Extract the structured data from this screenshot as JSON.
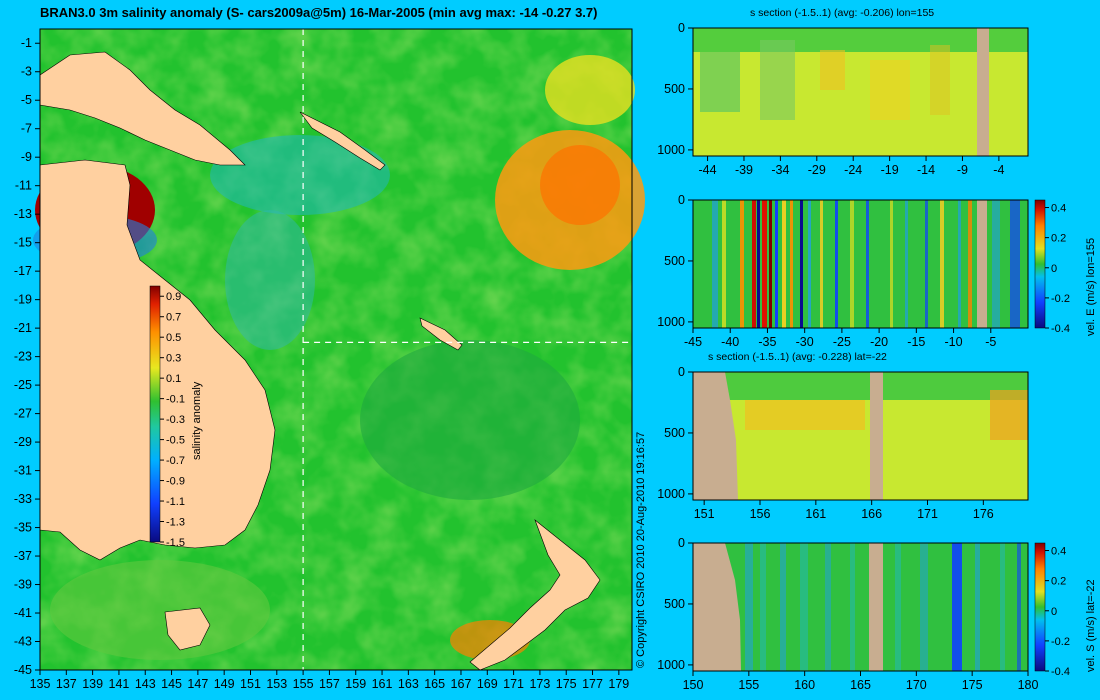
{
  "main_title": "BRAN3.0 3m salinity anomaly (S- cars2009a@5m) 16-Mar-2005 (min avg max: -14 -0.27 3.7)",
  "copyright": "© Copyright CSIRO 2010   20-Aug-2010 19:16:57",
  "colors": {
    "background": "#00ccff",
    "land": "#ffd0a0",
    "section_land": "#c8ad90",
    "ocean_base": "#22c22e"
  },
  "chart_data": [
    {
      "type": "heatmap",
      "id": "map",
      "title": "BRAN3.0 3m salinity anomaly (S- cars2009a@5m) 16-Mar-2005 (min avg max: -14 -0.27 3.7)",
      "xlabel": "",
      "ylabel": "",
      "xlim": [
        135,
        180
      ],
      "ylim": [
        -45,
        0
      ],
      "x_ticks": [
        135,
        137,
        139,
        141,
        143,
        145,
        147,
        149,
        151,
        153,
        155,
        157,
        159,
        161,
        163,
        165,
        167,
        169,
        171,
        173,
        175,
        177,
        179
      ],
      "y_ticks": [
        -1,
        -3,
        -5,
        -7,
        -9,
        -11,
        -13,
        -15,
        -17,
        -19,
        -21,
        -23,
        -25,
        -27,
        -29,
        -31,
        -33,
        -35,
        -37,
        -39,
        -41,
        -43,
        -45
      ],
      "crosshair": {
        "lon": 155,
        "lat": -22
      },
      "colorbar": {
        "label": "salinity anomaly",
        "range": [
          -1.5,
          1.0
        ],
        "ticks": [
          0.9,
          0.7,
          0.5,
          0.3,
          0.1,
          -0.1,
          -0.3,
          -0.5,
          -0.7,
          -0.9,
          -1.1,
          -1.3,
          -1.5
        ]
      }
    },
    {
      "type": "heatmap",
      "id": "s1",
      "title": "s section (-1.5..1) (avg: -0.206) lon=155",
      "xlim": [
        -46,
        0
      ],
      "ylim": [
        1050,
        0
      ],
      "x_ticks": [
        -44,
        -39,
        -34,
        -29,
        -24,
        -19,
        -14,
        -9,
        -4
      ],
      "y_ticks": [
        0,
        500,
        1000
      ],
      "colorbar": null
    },
    {
      "type": "heatmap",
      "id": "s2",
      "title": "",
      "xlim": [
        -45,
        0
      ],
      "ylim": [
        1050,
        0
      ],
      "x_ticks": [
        -45,
        -40,
        -35,
        -30,
        -25,
        -20,
        -15,
        -10,
        -5
      ],
      "y_ticks": [
        0,
        500,
        1000
      ],
      "colorbar": {
        "label": "vel. E (m/s) lon=155",
        "range": [
          -0.4,
          0.45
        ],
        "ticks": [
          0.4,
          0.2,
          0,
          -0.2,
          -0.4
        ]
      }
    },
    {
      "type": "heatmap",
      "id": "s3",
      "title": "s section (-1.5..1) (avg: -0.228) lat=-22",
      "xlim": [
        150,
        180
      ],
      "ylim": [
        1050,
        0
      ],
      "x_ticks": [
        151,
        156,
        161,
        166,
        171,
        176
      ],
      "y_ticks": [
        0,
        500,
        1000
      ],
      "colorbar": null
    },
    {
      "type": "heatmap",
      "id": "s4",
      "title": "",
      "xlim": [
        150,
        180
      ],
      "ylim": [
        1050,
        0
      ],
      "x_ticks": [
        150,
        155,
        160,
        165,
        170,
        175,
        180
      ],
      "y_ticks": [
        0,
        500,
        1000
      ],
      "colorbar": {
        "label": "vel. S (m/s) lat=-22",
        "range": [
          -0.4,
          0.45
        ],
        "ticks": [
          0.4,
          0.2,
          0,
          -0.2,
          -0.4
        ]
      }
    }
  ]
}
